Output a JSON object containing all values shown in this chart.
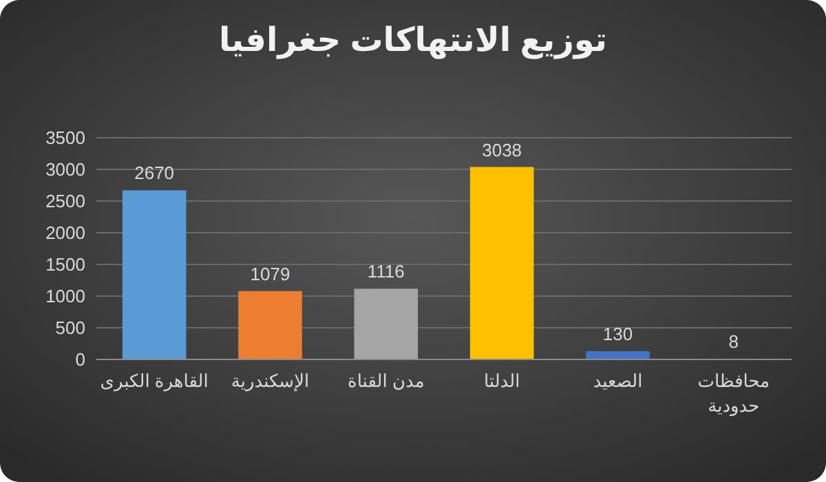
{
  "chart_data": {
    "type": "bar",
    "title": "توزيع الانتهاكات جغرافيا",
    "categories": [
      "القاهرة الكبرى",
      "الإسكندرية",
      "مدن القناة",
      "الدلتا",
      "الصعيد",
      "محافظات حدودية"
    ],
    "values": [
      2670,
      1079,
      1116,
      3038,
      130,
      8
    ],
    "colors": [
      "#5b9bd5",
      "#ed7d31",
      "#a5a5a5",
      "#ffc000",
      "#4472c4",
      "#70ad47"
    ],
    "ylim": [
      0,
      3500
    ],
    "yticks": [
      0,
      500,
      1000,
      1500,
      2000,
      2500,
      3000,
      3500
    ],
    "grid": "y",
    "data_labels": true
  }
}
